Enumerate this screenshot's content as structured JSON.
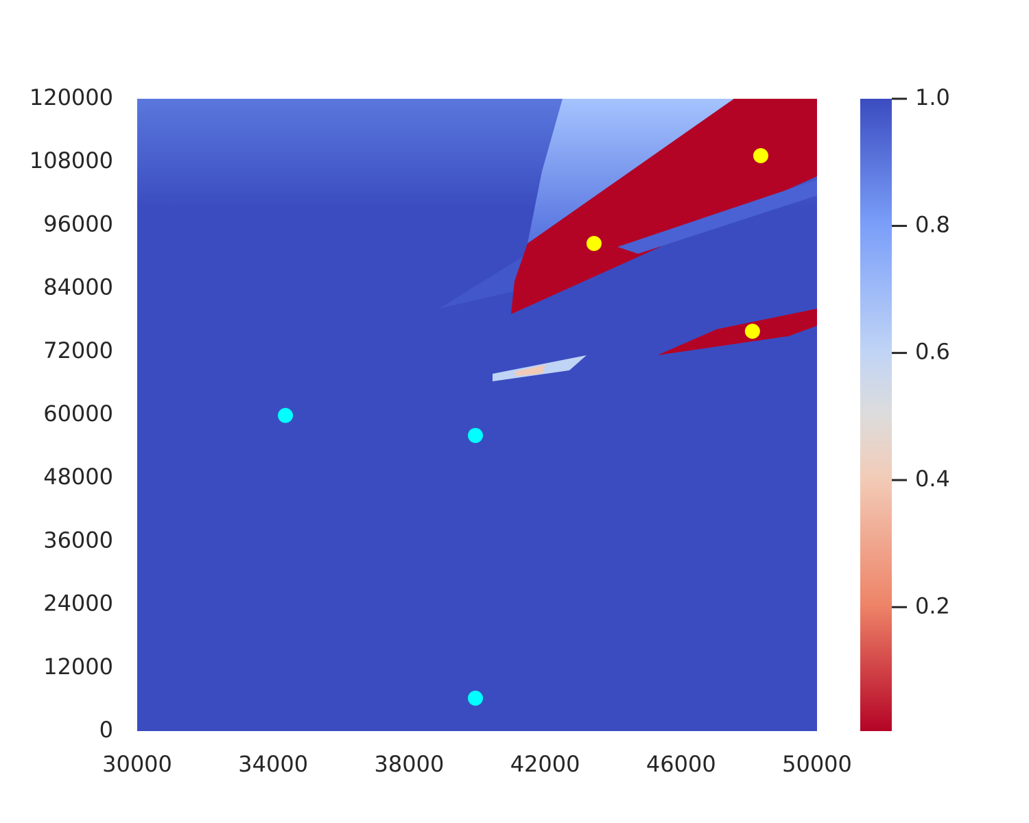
{
  "chart_data": {
    "type": "scatter",
    "xlim": [
      30000,
      50000
    ],
    "xticks": [
      30000,
      34000,
      38000,
      42000,
      46000,
      50000
    ],
    "ylim": [
      0,
      120000
    ],
    "yticks": [
      0,
      12000,
      24000,
      36000,
      48000,
      60000,
      72000,
      84000,
      96000,
      108000,
      120000
    ],
    "grid": false,
    "series": [
      {
        "color": "#00ffff",
        "x": [
          34360,
          39950,
          39950
        ],
        "y": [
          59900,
          56100,
          6250
        ]
      },
      {
        "color": "#ffff00",
        "x": [
          43440,
          48345,
          48100
        ],
        "y": [
          92540,
          109200,
          75880
        ]
      }
    ],
    "colorbar": {
      "lim": [
        0.005,
        1.0
      ],
      "ticks": [
        {
          "value": 1,
          "label": "1.0"
        },
        0.8,
        0.6,
        0.4,
        0.2
      ]
    }
  }
}
